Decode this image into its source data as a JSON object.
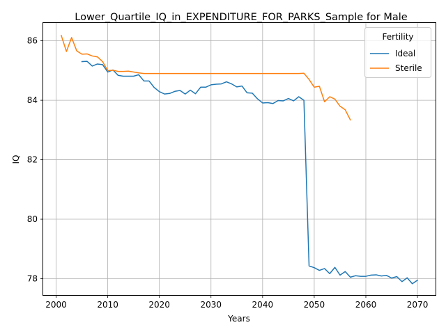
{
  "chart_data": {
    "type": "line",
    "title": "Lower_Quartile_IQ_in_EXPENDITURE_FOR_PARKS_Sample for Male",
    "xlabel": "Years",
    "ylabel": "IQ",
    "xlim": [
      1997.5,
      2073.5
    ],
    "ylim": [
      77.45,
      86.6
    ],
    "xticks": [
      2000,
      2010,
      2020,
      2030,
      2040,
      2050,
      2060,
      2070
    ],
    "yticks": [
      78,
      80,
      82,
      84,
      86
    ],
    "grid": true,
    "legend": {
      "title": "Fertility",
      "position": "top-right"
    },
    "series": [
      {
        "name": "Ideal",
        "color": "#1f77b4",
        "x": [
          2005,
          2006,
          2007,
          2008,
          2009,
          2010,
          2011,
          2012,
          2013,
          2014,
          2015,
          2016,
          2017,
          2018,
          2019,
          2020,
          2021,
          2022,
          2023,
          2024,
          2025,
          2026,
          2027,
          2028,
          2029,
          2030,
          2031,
          2032,
          2033,
          2034,
          2035,
          2036,
          2037,
          2038,
          2039,
          2040,
          2041,
          2042,
          2043,
          2044,
          2045,
          2046,
          2047,
          2048,
          2049,
          2050,
          2051,
          2052,
          2053,
          2054,
          2055,
          2056,
          2057,
          2058,
          2059,
          2060,
          2061,
          2062,
          2063,
          2064,
          2065,
          2066,
          2067,
          2068,
          2069,
          2070
        ],
        "values": [
          85.3,
          85.31,
          85.15,
          85.22,
          85.2,
          84.95,
          85.02,
          84.84,
          84.81,
          84.81,
          84.81,
          84.86,
          84.65,
          84.65,
          84.43,
          84.29,
          84.21,
          84.23,
          84.3,
          84.33,
          84.21,
          84.34,
          84.22,
          84.44,
          84.44,
          84.52,
          84.54,
          84.55,
          84.62,
          84.55,
          84.45,
          84.48,
          84.25,
          84.24,
          84.05,
          83.91,
          83.92,
          83.89,
          83.99,
          83.98,
          84.06,
          83.98,
          84.12,
          84.0,
          78.43,
          78.37,
          78.28,
          78.34,
          78.17,
          78.38,
          78.12,
          78.24,
          78.05,
          78.1,
          78.08,
          78.08,
          78.12,
          78.13,
          78.09,
          78.11,
          78.02,
          78.07,
          77.9,
          78.03,
          77.83,
          77.95
        ]
      },
      {
        "name": "Sterile",
        "color": "#ff7f0e",
        "x": [
          2001,
          2002,
          2003,
          2004,
          2005,
          2006,
          2007,
          2008,
          2009,
          2010,
          2011,
          2012,
          2013,
          2014,
          2015,
          2016,
          2017,
          2018,
          2019,
          2020,
          2021,
          2022,
          2023,
          2024,
          2025,
          2026,
          2027,
          2028,
          2029,
          2030,
          2031,
          2032,
          2033,
          2034,
          2035,
          2036,
          2037,
          2038,
          2039,
          2040,
          2041,
          2042,
          2043,
          2044,
          2045,
          2046,
          2047,
          2048,
          2049,
          2050,
          2051,
          2052,
          2053,
          2054,
          2055,
          2056,
          2057
        ],
        "values": [
          86.18,
          85.64,
          86.11,
          85.66,
          85.55,
          85.56,
          85.49,
          85.46,
          85.3,
          85.0,
          85.01,
          84.97,
          84.97,
          84.98,
          84.95,
          84.92,
          84.9,
          84.9,
          84.9,
          84.9,
          84.9,
          84.9,
          84.9,
          84.9,
          84.9,
          84.9,
          84.9,
          84.9,
          84.9,
          84.9,
          84.9,
          84.9,
          84.9,
          84.9,
          84.9,
          84.9,
          84.9,
          84.9,
          84.9,
          84.9,
          84.9,
          84.9,
          84.9,
          84.9,
          84.9,
          84.9,
          84.9,
          84.91,
          84.7,
          84.44,
          84.47,
          83.95,
          84.12,
          84.04,
          83.8,
          83.68,
          83.34
        ]
      }
    ]
  }
}
